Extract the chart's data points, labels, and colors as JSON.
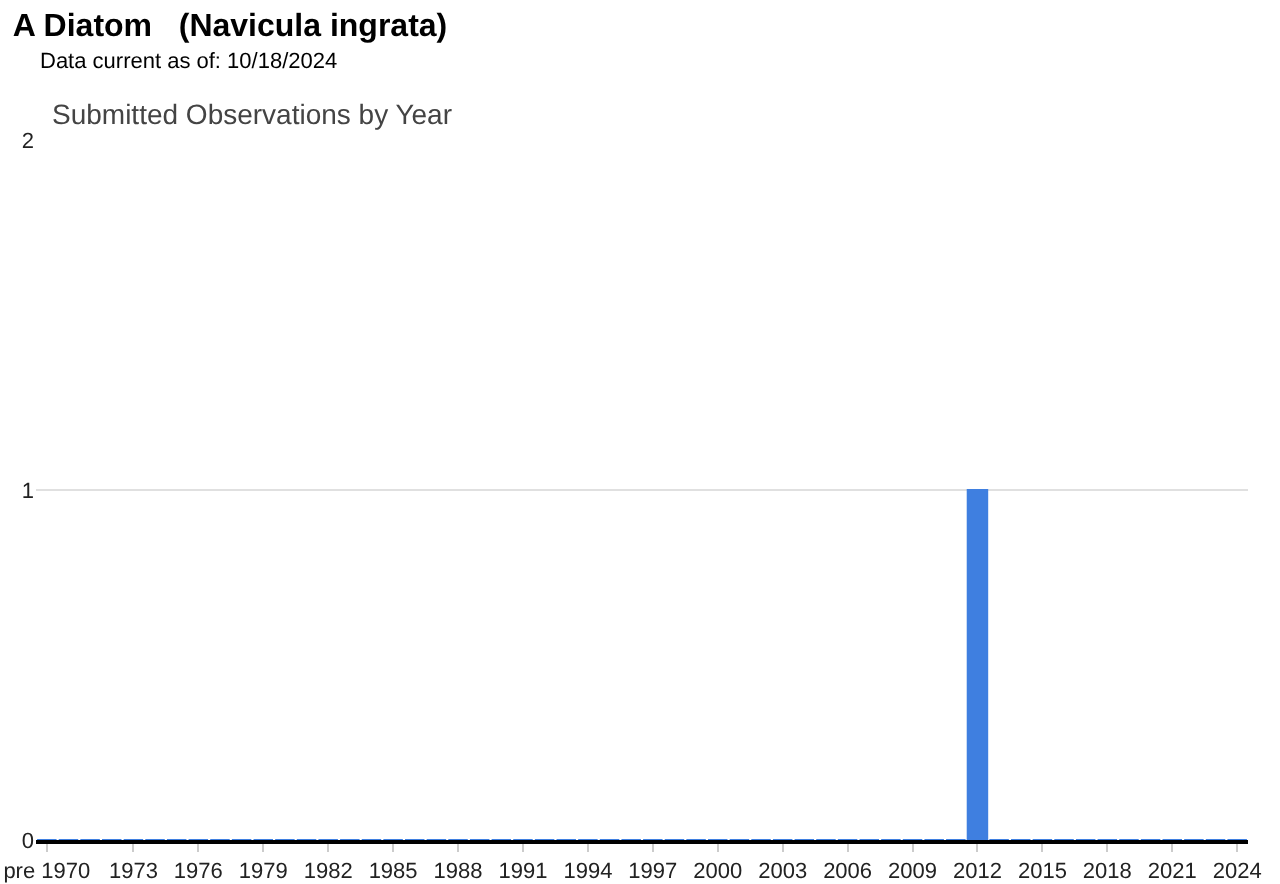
{
  "chart_data": {
    "type": "bar",
    "title": "A Diatom   (Navicula ingrata)",
    "subtitle": "Data current as of: 10/18/2024",
    "annotations": [
      "Submitted Observations by Year"
    ],
    "categories": [
      "pre 1970",
      null,
      null,
      null,
      "1973",
      null,
      null,
      "1976",
      null,
      null,
      "1979",
      null,
      null,
      "1982",
      null,
      null,
      "1985",
      null,
      null,
      "1988",
      null,
      null,
      "1991",
      null,
      null,
      "1994",
      null,
      null,
      "1997",
      null,
      null,
      "2000",
      null,
      null,
      "2003",
      null,
      null,
      "2006",
      null,
      null,
      "2009",
      null,
      null,
      "2012",
      null,
      null,
      "2015",
      null,
      null,
      "2018",
      null,
      null,
      "2021",
      null,
      null,
      "2024"
    ],
    "values": [
      0,
      0,
      0,
      0,
      0,
      0,
      0,
      0,
      0,
      0,
      0,
      0,
      0,
      0,
      0,
      0,
      0,
      0,
      0,
      0,
      0,
      0,
      0,
      0,
      0,
      0,
      0,
      0,
      0,
      0,
      0,
      0,
      0,
      0,
      0,
      0,
      0,
      0,
      0,
      0,
      0,
      0,
      0,
      1,
      0,
      0,
      0,
      0,
      0,
      0,
      0,
      0,
      0,
      0,
      0,
      0
    ],
    "color": "#3f7fe0",
    "ylim": [
      0,
      2
    ],
    "yticks": [
      0,
      1,
      2
    ],
    "grid": "y"
  }
}
